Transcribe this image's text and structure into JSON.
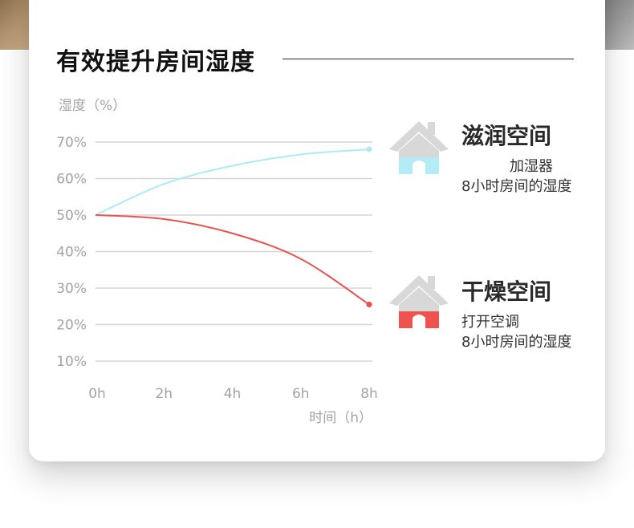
{
  "heading": "有效提升房间湿度",
  "chart_data": {
    "type": "line",
    "ylabel": "湿度（%）",
    "xlabel": "时间（h）",
    "x": [
      0,
      2,
      4,
      6,
      8
    ],
    "x_tick_labels": [
      "0h",
      "2h",
      "4h",
      "6h",
      "8h"
    ],
    "y_tick_labels": [
      "70%",
      "60%",
      "50%",
      "40%",
      "30%",
      "20%",
      "10%"
    ],
    "y_ticks": [
      70,
      60,
      50,
      40,
      30,
      20,
      10
    ],
    "ylim": [
      10,
      70
    ],
    "grid": true,
    "series": [
      {
        "name": "滋润空间",
        "color": "#a8ecf5",
        "values": [
          50,
          58.5,
          63.5,
          66.6,
          68
        ]
      },
      {
        "name": "干燥空间",
        "color": "#e8534f",
        "values": [
          50,
          48.9,
          45,
          38,
          25.5
        ]
      }
    ]
  },
  "legend": [
    {
      "title": "滋润空间",
      "line1": "加湿器",
      "line2": "8小时房间的湿度",
      "icon": "house-icon",
      "fill_color": "#b3ecf5"
    },
    {
      "title": "干燥空间",
      "line1": "打开空调",
      "line2": "8小时房间的湿度",
      "icon": "house-icon",
      "fill_color": "#ef5350"
    }
  ],
  "colors": {
    "grid": "#d6d6d6",
    "tick_text": "#a3a3a3",
    "house_gray": "#d8d8d8"
  }
}
